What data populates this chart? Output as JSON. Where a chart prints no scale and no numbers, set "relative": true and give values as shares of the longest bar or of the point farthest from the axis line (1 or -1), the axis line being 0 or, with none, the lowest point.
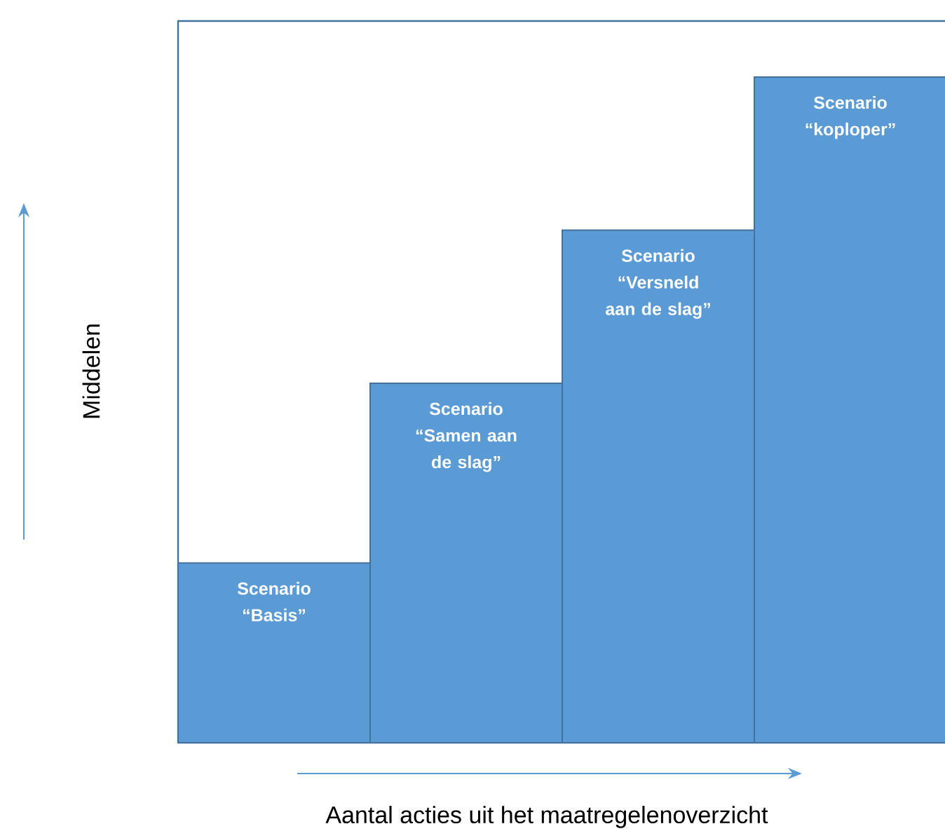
{
  "chart_data": {
    "type": "bar",
    "relative": true,
    "color": "#5b9bd5",
    "categories": [
      "Scenario “Basis”",
      "Scenario “Samen aan de slag”",
      "Scenario “Versneld aan de slag”",
      "Scenario “koploper”"
    ],
    "values": [
      0.27,
      0.54,
      0.77,
      1
    ],
    "xlabel": "Aantal acties uit het maatregelenoverzicht",
    "ylabel": "Middelen"
  }
}
